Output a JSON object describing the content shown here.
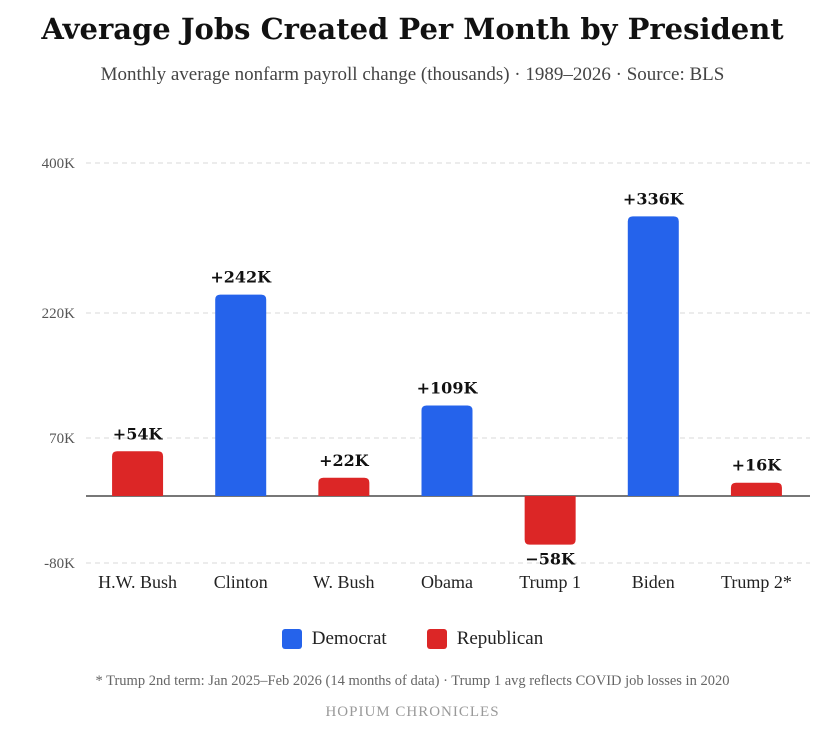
{
  "chart_data": {
    "type": "bar",
    "title": "Average Jobs Created Per Month by President",
    "subtitle": "Monthly average nonfarm payroll change (thousands) · 1989–2026 · Source: BLS",
    "categories": [
      "H.W. Bush",
      "Clinton",
      "W. Bush",
      "Obama",
      "Trump 1",
      "Biden",
      "Trump 2*"
    ],
    "values": [
      54,
      242,
      22,
      109,
      -58,
      336,
      16
    ],
    "value_labels": [
      "+54K",
      "+242K",
      "+22K",
      "+109K",
      "−58K",
      "+336K",
      "+16K"
    ],
    "party": [
      "Republican",
      "Democrat",
      "Republican",
      "Democrat",
      "Republican",
      "Democrat",
      "Republican"
    ],
    "yticks": [
      {
        "value": 400,
        "label": "400K"
      },
      {
        "value": 220,
        "label": "220K"
      },
      {
        "value": 70,
        "label": "70K"
      },
      {
        "value": -80,
        "label": "-80K"
      }
    ],
    "ylim": [
      -80,
      400
    ],
    "grid": true,
    "legend": {
      "position": "bottom",
      "items": [
        {
          "label": "Democrat",
          "color": "#2563EB"
        },
        {
          "label": "Republican",
          "color": "#DC2626"
        }
      ]
    },
    "colors": {
      "Democrat": "#2563EB",
      "Republican": "#DC2626"
    }
  },
  "footnote": "* Trump 2nd term: Jan 2025–Feb 2026 (14 months of data) · Trump 1 avg reflects COVID job losses in 2020",
  "brand": "HOPIUM CHRONICLES"
}
